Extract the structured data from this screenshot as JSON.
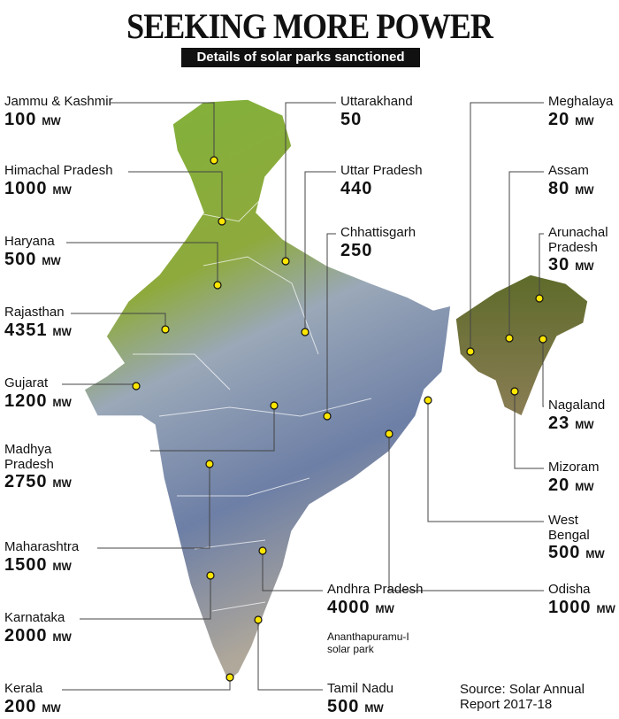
{
  "title": "SEEKING MORE POWER",
  "subtitle": "Details of solar parks sanctioned",
  "states": [
    {
      "name": "Jammu & Kashmir",
      "value": 100,
      "unit": "MW"
    },
    {
      "name": "Himachal Pradesh",
      "value": 1000,
      "unit": "MW"
    },
    {
      "name": "Haryana",
      "value": 500,
      "unit": "MW"
    },
    {
      "name": "Rajasthan",
      "value": 4351,
      "unit": "MW"
    },
    {
      "name": "Gujarat",
      "value": 1200,
      "unit": "MW"
    },
    {
      "name": "Madhya Pradesh",
      "value": 2750,
      "unit": "MW"
    },
    {
      "name": "Maharashtra",
      "value": 1500,
      "unit": "MW"
    },
    {
      "name": "Karnataka",
      "value": 2000,
      "unit": "MW"
    },
    {
      "name": "Kerala",
      "value": 200,
      "unit": "MW"
    },
    {
      "name": "Uttarakhand",
      "value": 50
    },
    {
      "name": "Uttar Pradesh",
      "value": 440
    },
    {
      "name": "Chhattisgarh",
      "value": 250
    },
    {
      "name": "Andhra Pradesh",
      "value": 4000,
      "unit": "MW"
    },
    {
      "name": "Tamil Nadu",
      "value": 500,
      "unit": "MW"
    },
    {
      "name": "Meghalaya",
      "value": 20,
      "unit": "MW"
    },
    {
      "name": "Assam",
      "value": 80,
      "unit": "MW"
    },
    {
      "name": "Arunachal Pradesh",
      "value": 30,
      "unit": "MW"
    },
    {
      "name": "Nagaland",
      "value": 23,
      "unit": "MW"
    },
    {
      "name": "Mizoram",
      "value": 20,
      "unit": "MW"
    },
    {
      "name": "West Bengal",
      "value": 500,
      "unit": "MW"
    },
    {
      "name": "Odisha",
      "value": 1000,
      "unit": "MW"
    }
  ],
  "note": "Ananthapuramu-I solar park",
  "source": "Source: Solar Annual Report 2017-18"
}
